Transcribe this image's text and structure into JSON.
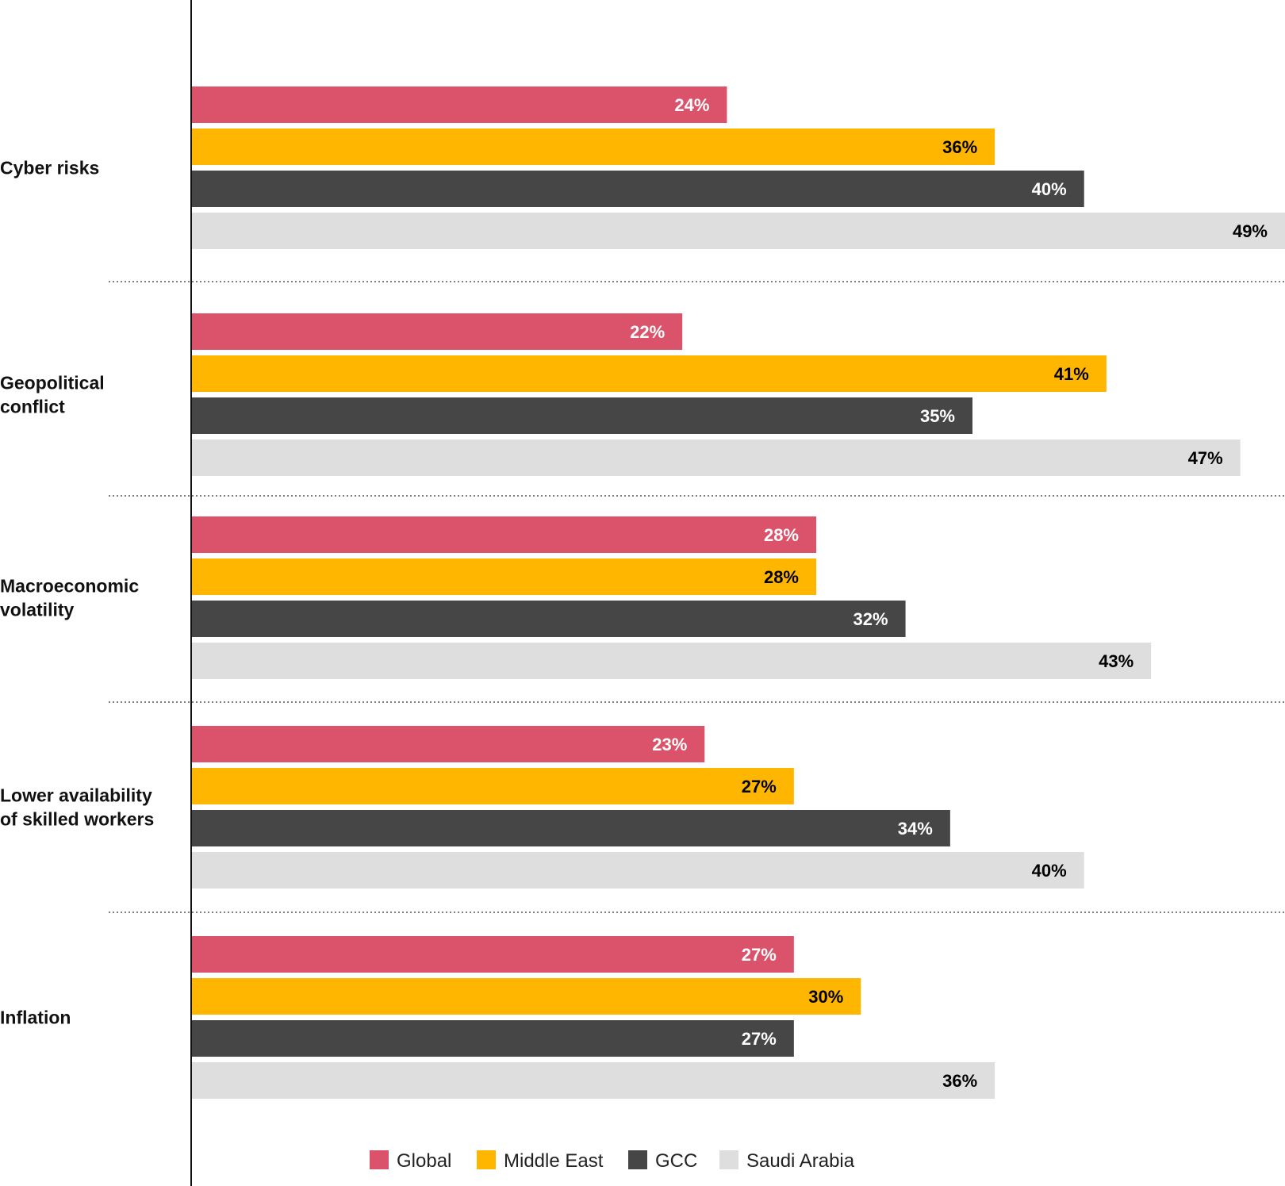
{
  "chart_data": {
    "type": "bar",
    "orientation": "horizontal",
    "categories": [
      "Cyber risks",
      "Geopolitical conflict",
      "Macroeconomic volatility",
      "Lower availability of skilled workers",
      "Inflation"
    ],
    "category_label_lines": [
      [
        "Cyber risks"
      ],
      [
        "Geopolitical",
        "conflict"
      ],
      [
        "Macroeconomic",
        "volatility"
      ],
      [
        "Lower availability",
        "of skilled workers"
      ],
      [
        "Inflation"
      ]
    ],
    "series": [
      {
        "name": "Global",
        "color": "#db536a",
        "label_color": "#ffffff",
        "values": [
          24,
          22,
          28,
          23,
          27
        ]
      },
      {
        "name": "Middle East",
        "color": "#ffb600",
        "label_color": "#000000",
        "values": [
          36,
          41,
          28,
          27,
          30
        ]
      },
      {
        "name": "GCC",
        "color": "#464646",
        "label_color": "#ffffff",
        "values": [
          40,
          35,
          32,
          34,
          27
        ]
      },
      {
        "name": "Saudi Arabia",
        "color": "#dedede",
        "label_color": "#000000",
        "values": [
          49,
          47,
          43,
          40,
          36
        ]
      }
    ],
    "value_suffix": "%",
    "xlim": [
      0,
      49
    ],
    "grid": false,
    "legend_position": "bottom",
    "title": "",
    "xlabel": "",
    "ylabel": ""
  }
}
